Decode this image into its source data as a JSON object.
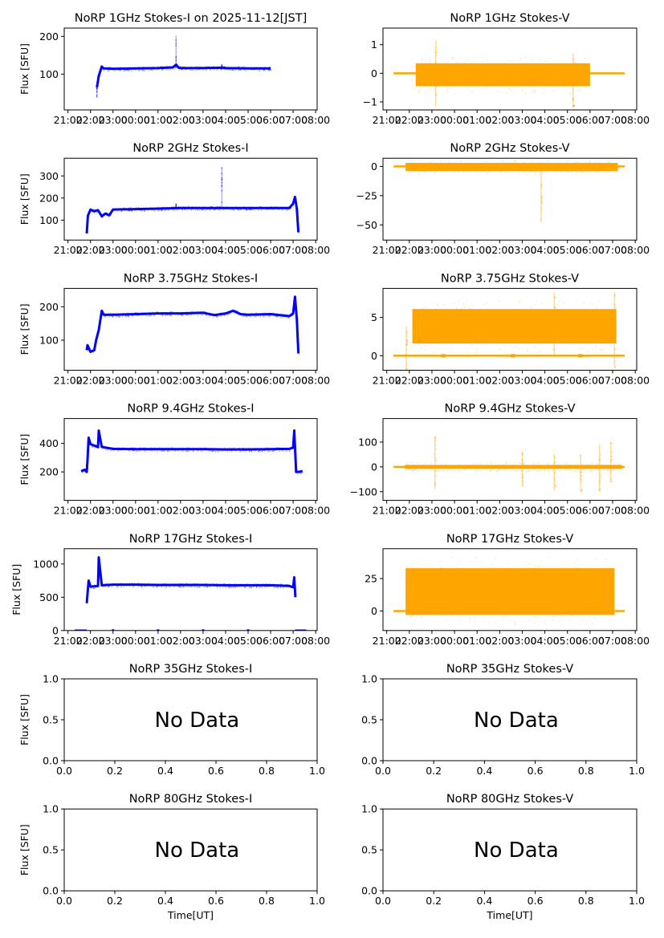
{
  "figure": {
    "x_label": "Time[UT]",
    "y_label": "Flux [SFU]",
    "no_data_text": "No Data",
    "colors": {
      "stokes_i": "#0000ff",
      "stokes_v": "#ffa500",
      "axes": "#000000"
    }
  },
  "chart_data": [
    {
      "type": "scatter",
      "id": "1ghz-i",
      "title": "NoRP 1GHz Stokes-I on 2025-11-12[JST]",
      "ylabel": "Flux [SFU]",
      "xlabel": "",
      "has_data": true,
      "color": "stokes_i",
      "xlim": [
        "20:50",
        "08:04"
      ],
      "ylim": [
        5,
        222
      ],
      "xticks": [
        "21:00",
        "22:00",
        "23:00",
        "00:00",
        "01:00",
        "02:00",
        "03:00",
        "04:00",
        "05:00",
        "06:00",
        "07:00",
        "08:00"
      ],
      "yticks": [
        100,
        200
      ],
      "series": {
        "t": [
          "22:17",
          "22:18",
          "22:22",
          "22:30",
          "22:35",
          "23:00",
          "00:00",
          "01:00",
          "01:40",
          "01:48",
          "01:55",
          "02:00",
          "03:00",
          "03:50",
          "04:00",
          "05:00",
          "06:00"
        ],
        "y": [
          65,
          70,
          95,
          120,
          115,
          114,
          115,
          116,
          118,
          125,
          117,
          116,
          116,
          117,
          116,
          115,
          115
        ],
        "spikes": [
          {
            "t": "22:17",
            "lo": 38,
            "hi": 70
          },
          {
            "t": "01:48",
            "lo": 115,
            "hi": 202
          },
          {
            "t": "03:50",
            "lo": 114,
            "hi": 127
          }
        ]
      }
    },
    {
      "type": "scatter",
      "id": "1ghz-v",
      "title": "NoRP 1GHz Stokes-V",
      "ylabel": "",
      "xlabel": "",
      "has_data": true,
      "color": "stokes_v",
      "xlim": [
        "20:50",
        "08:04"
      ],
      "ylim": [
        -1.28,
        1.58
      ],
      "xticks": [
        "21:00",
        "22:00",
        "23:00",
        "00:00",
        "01:00",
        "02:00",
        "03:00",
        "04:00",
        "05:00",
        "06:00",
        "07:00",
        "08:00"
      ],
      "yticks": [
        -1,
        0,
        1
      ],
      "baseline": {
        "value": 0,
        "from": "21:18",
        "to": "07:32"
      },
      "band": {
        "from": "22:17",
        "to": "06:00",
        "lo": -0.45,
        "hi": 0.35,
        "scatter_lo": -0.7,
        "scatter_hi": 0.6
      },
      "spikes": [
        {
          "t": "23:10",
          "lo": -1.15,
          "hi": 1.15
        },
        {
          "t": "05:15",
          "lo": -1.2,
          "hi": 0.7
        }
      ]
    },
    {
      "type": "scatter",
      "id": "2ghz-i",
      "title": "NoRP 2GHz Stokes-I",
      "ylabel": "Flux [SFU]",
      "xlabel": "",
      "has_data": true,
      "color": "stokes_i",
      "xlim": [
        "20:50",
        "08:04"
      ],
      "ylim": [
        10,
        380
      ],
      "xticks": [
        "21:00",
        "22:00",
        "23:00",
        "00:00",
        "01:00",
        "02:00",
        "03:00",
        "04:00",
        "05:00",
        "06:00",
        "07:00",
        "08:00"
      ],
      "yticks": [
        100,
        200,
        300
      ],
      "series": {
        "t": [
          "21:50",
          "21:53",
          "22:00",
          "22:10",
          "22:20",
          "22:30",
          "22:40",
          "22:50",
          "23:00",
          "00:00",
          "01:00",
          "02:00",
          "03:00",
          "04:00",
          "05:00",
          "06:00",
          "06:50",
          "07:00",
          "07:05",
          "07:10",
          "07:14"
        ],
        "y": [
          40,
          120,
          148,
          140,
          145,
          118,
          130,
          122,
          148,
          150,
          152,
          155,
          155,
          155,
          155,
          155,
          155,
          175,
          205,
          150,
          45
        ],
        "spikes": [
          {
            "t": "03:50",
            "lo": 155,
            "hi": 340
          },
          {
            "t": "01:48",
            "lo": 155,
            "hi": 178
          }
        ]
      }
    },
    {
      "type": "scatter",
      "id": "2ghz-v",
      "title": "NoRP 2GHz Stokes-V",
      "ylabel": "",
      "xlabel": "",
      "has_data": true,
      "color": "stokes_v",
      "xlim": [
        "20:50",
        "08:04"
      ],
      "ylim": [
        -63,
        7
      ],
      "xticks": [
        "21:00",
        "22:00",
        "23:00",
        "00:00",
        "01:00",
        "02:00",
        "03:00",
        "04:00",
        "05:00",
        "06:00",
        "07:00",
        "08:00"
      ],
      "yticks": [
        -50,
        -25,
        0
      ],
      "baseline": {
        "value": 0,
        "from": "21:18",
        "to": "07:32"
      },
      "band": {
        "from": "21:50",
        "to": "07:14",
        "lo": -4,
        "hi": 3,
        "scatter_lo": -6,
        "scatter_hi": 5
      },
      "spikes": [
        {
          "t": "03:50",
          "lo": -48,
          "hi": 0
        }
      ]
    },
    {
      "type": "scatter",
      "id": "3_75ghz-i",
      "title": "NoRP 3.75GHz Stokes-I",
      "ylabel": "Flux [SFU]",
      "xlabel": "",
      "has_data": true,
      "color": "stokes_i",
      "xlim": [
        "20:50",
        "08:04"
      ],
      "ylim": [
        10,
        255
      ],
      "xticks": [
        "21:00",
        "22:00",
        "23:00",
        "00:00",
        "01:00",
        "02:00",
        "03:00",
        "04:00",
        "05:00",
        "06:00",
        "07:00",
        "08:00"
      ],
      "yticks": [
        100,
        200
      ],
      "series": {
        "t": [
          "21:50",
          "21:52",
          "22:00",
          "22:10",
          "22:15",
          "22:22",
          "22:30",
          "22:35",
          "23:00",
          "00:00",
          "01:00",
          "02:00",
          "03:00",
          "03:30",
          "04:00",
          "04:20",
          "04:40",
          "05:00",
          "06:00",
          "06:50",
          "07:00",
          "07:05",
          "07:10",
          "07:14"
        ],
        "y": [
          70,
          85,
          65,
          70,
          100,
          130,
          188,
          176,
          176,
          178,
          180,
          180,
          182,
          175,
          180,
          188,
          178,
          176,
          178,
          172,
          180,
          230,
          160,
          60
        ],
        "spikes": []
      }
    },
    {
      "type": "scatter",
      "id": "3_75ghz-v",
      "title": "NoRP 3.75GHz Stokes-V",
      "ylabel": "",
      "xlabel": "",
      "has_data": true,
      "color": "stokes_v",
      "xlim": [
        "20:50",
        "08:04"
      ],
      "ylim": [
        -1.9,
        8.8
      ],
      "xticks": [
        "21:00",
        "22:00",
        "23:00",
        "00:00",
        "01:00",
        "02:00",
        "03:00",
        "04:00",
        "05:00",
        "06:00",
        "07:00",
        "08:00"
      ],
      "yticks": [
        0,
        5
      ],
      "baseline": {
        "value": 0,
        "from": "21:18",
        "to": "07:32"
      },
      "band": {
        "from": "22:08",
        "to": "07:10",
        "lo": 1.6,
        "hi": 6.1,
        "scatter_lo": 0.5,
        "scatter_hi": 7.3
      },
      "spikes": [
        {
          "t": "21:52",
          "lo": -1.8,
          "hi": 3.8
        },
        {
          "t": "04:25",
          "lo": 0,
          "hi": 8.3
        },
        {
          "t": "07:05",
          "lo": -1.5,
          "hi": 8.3
        }
      ],
      "gaps": [
        "23:30",
        "02:35",
        "05:35"
      ]
    },
    {
      "type": "scatter",
      "id": "9_4ghz-i",
      "title": "NoRP 9.4GHz Stokes-I",
      "ylabel": "Flux [SFU]",
      "xlabel": "",
      "has_data": true,
      "color": "stokes_i",
      "xlim": [
        "20:50",
        "08:04"
      ],
      "ylim": [
        0,
        575
      ],
      "xticks": [
        "21:00",
        "22:00",
        "23:00",
        "00:00",
        "01:00",
        "02:00",
        "03:00",
        "04:00",
        "05:00",
        "06:00",
        "07:00",
        "08:00"
      ],
      "yticks": [
        200,
        400
      ],
      "series": {
        "t": [
          "21:35",
          "21:45",
          "21:50",
          "21:52",
          "21:55",
          "22:00",
          "22:20",
          "22:22",
          "22:30",
          "23:00",
          "00:00",
          "01:00",
          "02:00",
          "03:00",
          "04:00",
          "05:00",
          "06:00",
          "06:50",
          "07:00",
          "07:03",
          "07:08",
          "07:15",
          "07:25"
        ],
        "y": [
          205,
          215,
          200,
          280,
          440,
          395,
          375,
          490,
          375,
          362,
          360,
          360,
          360,
          360,
          358,
          358,
          360,
          362,
          370,
          490,
          200,
          200,
          205
        ],
        "spikes": [
          {
            "t": "22:22",
            "lo": 370,
            "hi": 495
          }
        ]
      }
    },
    {
      "type": "scatter",
      "id": "9_4ghz-v",
      "title": "NoRP 9.4GHz Stokes-V",
      "ylabel": "",
      "xlabel": "",
      "has_data": true,
      "color": "stokes_v",
      "xlim": [
        "20:50",
        "08:04"
      ],
      "ylim": [
        -135,
        195
      ],
      "xticks": [
        "21:00",
        "22:00",
        "23:00",
        "00:00",
        "01:00",
        "02:00",
        "03:00",
        "04:00",
        "05:00",
        "06:00",
        "07:00",
        "08:00"
      ],
      "yticks": [
        -100,
        0,
        100
      ],
      "baseline": {
        "value": 0,
        "from": "21:18",
        "to": "07:32"
      },
      "band": {
        "from": "21:48",
        "to": "07:25",
        "lo": -8,
        "hi": 8,
        "scatter_lo": -20,
        "scatter_hi": 20
      },
      "spikes": [
        {
          "t": "23:08",
          "lo": -90,
          "hi": 125
        },
        {
          "t": "03:00",
          "lo": -80,
          "hi": 60
        },
        {
          "t": "04:25",
          "lo": -90,
          "hi": 50
        },
        {
          "t": "05:35",
          "lo": -100,
          "hi": 50
        },
        {
          "t": "06:25",
          "lo": -100,
          "hi": 90
        },
        {
          "t": "06:55",
          "lo": -60,
          "hi": 100
        }
      ]
    },
    {
      "type": "scatter",
      "id": "17ghz-i",
      "title": "NoRP 17GHz Stokes-I",
      "ylabel": "Flux [SFU]",
      "xlabel": "",
      "has_data": true,
      "color": "stokes_i",
      "xlim": [
        "20:50",
        "08:04"
      ],
      "ylim": [
        0,
        1230
      ],
      "xticks": [
        "21:00",
        "22:00",
        "23:00",
        "00:00",
        "01:00",
        "02:00",
        "03:00",
        "04:00",
        "05:00",
        "06:00",
        "07:00",
        "08:00"
      ],
      "yticks": [
        0,
        500,
        1000
      ],
      "series": {
        "t": [
          "21:50",
          "21:52",
          "21:55",
          "22:00",
          "22:20",
          "22:22",
          "22:30",
          "23:00",
          "00:00",
          "01:00",
          "02:00",
          "03:00",
          "04:00",
          "05:00",
          "06:00",
          "06:50",
          "07:00",
          "07:03",
          "07:06"
        ],
        "y": [
          410,
          550,
          750,
          660,
          670,
          1100,
          680,
          690,
          690,
          685,
          685,
          685,
          680,
          680,
          680,
          670,
          650,
          800,
          500
        ],
        "spikes": [
          {
            "t": "22:22",
            "lo": 680,
            "hi": 1120
          }
        ],
        "zero_segments": [
          [
            "21:18",
            "21:50"
          ],
          [
            "07:05",
            "07:35"
          ]
        ],
        "zero_points": [
          "23:00",
          "01:00",
          "03:00",
          "05:00"
        ]
      }
    },
    {
      "type": "scatter",
      "id": "17ghz-v",
      "title": "NoRP 17GHz Stokes-V",
      "ylabel": "",
      "xlabel": "",
      "has_data": true,
      "color": "stokes_v",
      "xlim": [
        "20:50",
        "08:04"
      ],
      "ylim": [
        -15,
        48
      ],
      "xticks": [
        "21:00",
        "22:00",
        "23:00",
        "00:00",
        "01:00",
        "02:00",
        "03:00",
        "04:00",
        "05:00",
        "06:00",
        "07:00",
        "08:00"
      ],
      "yticks": [
        0,
        25
      ],
      "baseline": {
        "value": 0,
        "from": "21:18",
        "to": "07:32"
      },
      "band": {
        "from": "21:50",
        "to": "07:05",
        "lo": -3,
        "hi": 33,
        "scatter_lo": -10,
        "scatter_hi": 42
      },
      "spikes": []
    },
    {
      "type": "empty",
      "id": "35ghz-i",
      "title": "NoRP 35GHz Stokes-I",
      "ylabel": "Flux [SFU]",
      "xlabel": "",
      "has_data": false,
      "xlim": [
        0,
        1
      ],
      "ylim": [
        0,
        1
      ],
      "xticks": [
        "0.0",
        "0.2",
        "0.4",
        "0.6",
        "0.8",
        "1.0"
      ],
      "yticks": [
        "0.0",
        "0.5",
        "1.0"
      ],
      "annotation": "No Data"
    },
    {
      "type": "empty",
      "id": "35ghz-v",
      "title": "NoRP 35GHz Stokes-V",
      "ylabel": "",
      "xlabel": "",
      "has_data": false,
      "xlim": [
        0,
        1
      ],
      "ylim": [
        0,
        1
      ],
      "xticks": [
        "0.0",
        "0.2",
        "0.4",
        "0.6",
        "0.8",
        "1.0"
      ],
      "yticks": [
        "0.0",
        "0.5",
        "1.0"
      ],
      "annotation": "No Data"
    },
    {
      "type": "empty",
      "id": "80ghz-i",
      "title": "NoRP 80GHz Stokes-I",
      "ylabel": "Flux [SFU]",
      "xlabel": "Time[UT]",
      "has_data": false,
      "xlim": [
        0,
        1
      ],
      "ylim": [
        0,
        1
      ],
      "xticks": [
        "0.0",
        "0.2",
        "0.4",
        "0.6",
        "0.8",
        "1.0"
      ],
      "yticks": [
        "0.0",
        "0.5",
        "1.0"
      ],
      "annotation": "No Data"
    },
    {
      "type": "empty",
      "id": "80ghz-v",
      "title": "NoRP 80GHz Stokes-V",
      "ylabel": "",
      "xlabel": "Time[UT]",
      "has_data": false,
      "xlim": [
        0,
        1
      ],
      "ylim": [
        0,
        1
      ],
      "xticks": [
        "0.0",
        "0.2",
        "0.4",
        "0.6",
        "0.8",
        "1.0"
      ],
      "yticks": [
        "0.0",
        "0.5",
        "1.0"
      ],
      "annotation": "No Data"
    }
  ]
}
